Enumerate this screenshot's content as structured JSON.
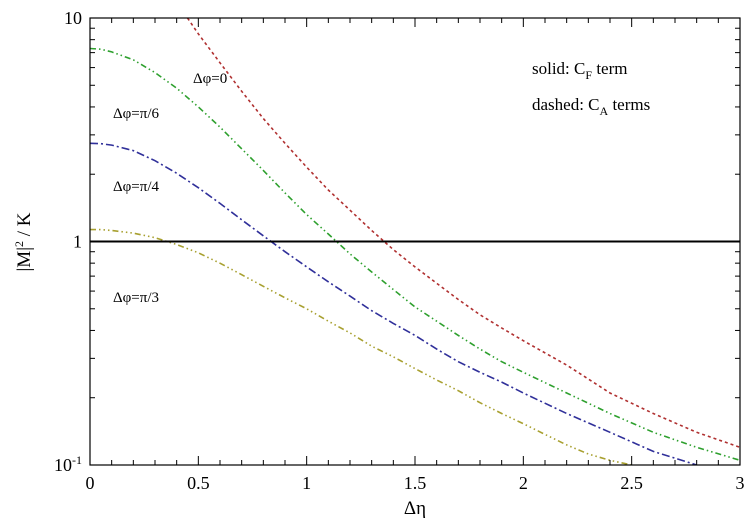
{
  "chart_data": {
    "type": "line",
    "title": "",
    "xlabel": "Δη",
    "ylabel_main": "|M|",
    "ylabel_sup": "2",
    "ylabel_rest": " / K",
    "xlim": [
      0,
      3
    ],
    "ylim": [
      0.1,
      10
    ],
    "yscale": "log",
    "grid": false,
    "x_ticks": [
      {
        "value": 0,
        "label": "0"
      },
      {
        "value": 0.5,
        "label": "0.5"
      },
      {
        "value": 1,
        "label": "1"
      },
      {
        "value": 1.5,
        "label": "1.5"
      },
      {
        "value": 2,
        "label": "2"
      },
      {
        "value": 2.5,
        "label": "2.5"
      },
      {
        "value": 3,
        "label": "3"
      }
    ],
    "y_ticks_major": [
      {
        "value": 10,
        "label": "10"
      },
      {
        "value": 1,
        "label": "1"
      }
    ],
    "y_tick_bottom": {
      "value": 0.1,
      "base": "10",
      "exp": "-1"
    },
    "legend_text": {
      "line1_main": "solid: C",
      "line1_sub": "F",
      "line1_rest": " term",
      "line2_main": "dashed: C",
      "line2_sub": "A",
      "line2_rest": " terms"
    },
    "series": [
      {
        "label": "Δφ=0",
        "color": "#b03030",
        "dash": "3,3",
        "x": [
          0.45,
          0.5,
          0.6,
          0.7,
          0.8,
          0.9,
          1.0,
          1.1,
          1.2,
          1.3,
          1.4,
          1.5,
          1.6,
          1.7,
          1.8,
          1.9,
          2.0,
          2.2,
          2.4,
          2.6,
          2.8,
          3.0
        ],
        "y": [
          10.0,
          8.5,
          6.3,
          4.7,
          3.55,
          2.75,
          2.15,
          1.7,
          1.38,
          1.12,
          0.92,
          0.77,
          0.65,
          0.55,
          0.47,
          0.41,
          0.36,
          0.28,
          0.21,
          0.17,
          0.14,
          0.12
        ]
      },
      {
        "label": "Δφ=π/6",
        "color": "#2ea02e",
        "dash": "6,3,1.5,3,1.5,3",
        "x": [
          0,
          0.05,
          0.1,
          0.2,
          0.3,
          0.4,
          0.5,
          0.6,
          0.7,
          0.8,
          0.9,
          1.0,
          1.1,
          1.2,
          1.3,
          1.4,
          1.5,
          1.6,
          1.7,
          1.8,
          1.9,
          2.0,
          2.2,
          2.4,
          2.6,
          2.8,
          3.0
        ],
        "y": [
          7.3,
          7.25,
          7.05,
          6.5,
          5.7,
          4.85,
          4.0,
          3.25,
          2.6,
          2.08,
          1.65,
          1.32,
          1.08,
          0.88,
          0.73,
          0.61,
          0.51,
          0.44,
          0.38,
          0.33,
          0.29,
          0.26,
          0.21,
          0.17,
          0.14,
          0.12,
          0.105
        ]
      },
      {
        "label": "Δφ=π/4",
        "color": "#30309a",
        "dash": "8,3,2,3",
        "x": [
          0,
          0.05,
          0.1,
          0.2,
          0.3,
          0.4,
          0.5,
          0.6,
          0.7,
          0.8,
          0.9,
          1.0,
          1.1,
          1.2,
          1.3,
          1.4,
          1.5,
          1.6,
          1.7,
          1.8,
          1.9,
          2.0,
          2.2,
          2.4,
          2.6,
          2.8
        ],
        "y": [
          2.75,
          2.74,
          2.7,
          2.55,
          2.3,
          2.02,
          1.74,
          1.48,
          1.25,
          1.06,
          0.9,
          0.77,
          0.66,
          0.57,
          0.49,
          0.43,
          0.38,
          0.33,
          0.29,
          0.26,
          0.235,
          0.21,
          0.17,
          0.14,
          0.115,
          0.1
        ]
      },
      {
        "label": "Δφ=π/3",
        "color": "#a8a030",
        "dash": "6,3,1.5,3,1.5,3,1.5,3",
        "x": [
          0,
          0.05,
          0.1,
          0.2,
          0.3,
          0.4,
          0.5,
          0.6,
          0.7,
          0.8,
          0.9,
          1.0,
          1.1,
          1.2,
          1.3,
          1.4,
          1.5,
          1.6,
          1.7,
          1.8,
          1.9,
          2.0,
          2.1,
          2.2,
          2.3,
          2.4,
          2.5
        ],
        "y": [
          1.13,
          1.13,
          1.12,
          1.09,
          1.04,
          0.97,
          0.89,
          0.8,
          0.71,
          0.63,
          0.56,
          0.5,
          0.44,
          0.39,
          0.34,
          0.305,
          0.27,
          0.24,
          0.215,
          0.19,
          0.17,
          0.153,
          0.137,
          0.123,
          0.112,
          0.105,
          0.1
        ]
      },
      {
        "label": "",
        "color": "#000000",
        "dash": "none",
        "x": [
          0,
          3
        ],
        "y": [
          1.0,
          1.0
        ]
      }
    ]
  }
}
